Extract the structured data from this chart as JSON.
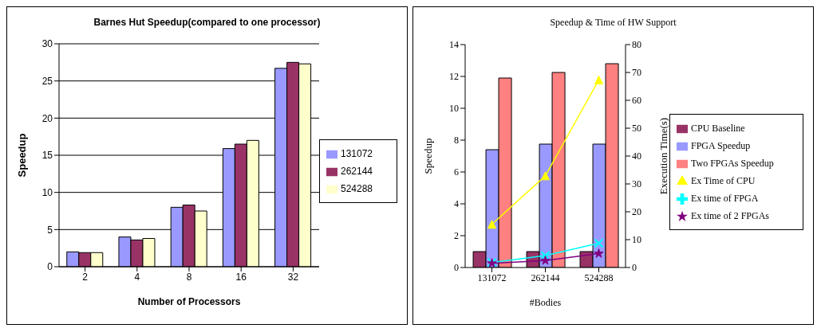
{
  "chart_data": [
    {
      "type": "bar",
      "title": "Barnes Hut Speedup(compared to one processor)",
      "xlabel": "Number of Processors",
      "ylabel": "Speedup",
      "categories": [
        "2",
        "4",
        "8",
        "16",
        "32"
      ],
      "series": [
        {
          "name": "131072",
          "color": "#9999ff",
          "values": [
            2.0,
            4.0,
            8.0,
            15.9,
            26.7
          ]
        },
        {
          "name": "262144",
          "color": "#993366",
          "values": [
            1.9,
            3.6,
            8.3,
            16.5,
            27.5
          ]
        },
        {
          "name": "524288",
          "color": "#ffffcc",
          "values": [
            1.9,
            3.8,
            7.5,
            17.0,
            27.3
          ]
        }
      ],
      "ylim": [
        0,
        30
      ],
      "yticks": [
        0,
        5,
        10,
        15,
        20,
        25,
        30
      ],
      "grid": "y",
      "legend": "right"
    },
    {
      "type": "bar",
      "title": "Speedup & Time of HW Support",
      "xlabel": "#Bodies",
      "ylabel": "Speedup",
      "y2label": "Execution Time(s)",
      "categories": [
        "131072",
        "262144",
        "524288"
      ],
      "series": [
        {
          "name": "CPU Baseline",
          "color": "#993366",
          "values": [
            1,
            1,
            1
          ]
        },
        {
          "name": "FPGA Speedup",
          "color": "#9999ff",
          "values": [
            7.4,
            7.75,
            7.75
          ]
        },
        {
          "name": "Two FPGAs Speedup",
          "color": "#ff8080",
          "values": [
            11.9,
            12.25,
            12.8
          ]
        },
        {
          "name": "Ex Time of CPU",
          "type": "line",
          "axis": "y2",
          "marker": "triangle",
          "color": "#ffff00",
          "values": [
            15.5,
            32.9,
            67.3
          ]
        },
        {
          "name": "Ex time of FPGA",
          "type": "line",
          "axis": "y2",
          "marker": "cross",
          "color": "#00ffff",
          "values": [
            1.8,
            4.3,
            8.7
          ]
        },
        {
          "name": "Ex time of 2 FPGAs",
          "type": "line",
          "axis": "y2",
          "marker": "star",
          "color": "#800080",
          "values": [
            1.5,
            2.5,
            5.0
          ]
        }
      ],
      "ylim": [
        0,
        14
      ],
      "yticks": [
        0,
        2,
        4,
        6,
        8,
        10,
        12,
        14
      ],
      "y2lim": [
        0,
        80
      ],
      "y2ticks": [
        0,
        10,
        20,
        30,
        40,
        50,
        60,
        70,
        80
      ],
      "grid": false,
      "legend": "right"
    }
  ]
}
